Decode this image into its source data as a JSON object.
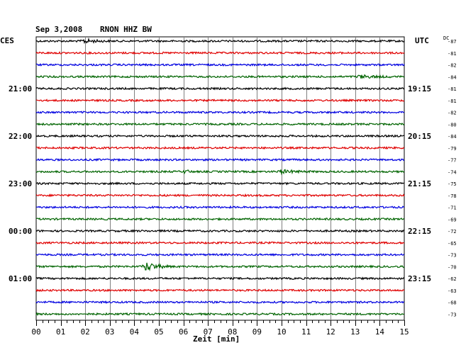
{
  "header": {
    "date": "Sep 3,2008",
    "station": "RNON HHZ BW",
    "left_zone": "CES",
    "right_zone": "UTC",
    "dc_label": "DC"
  },
  "chart_data": {
    "type": "line",
    "title": "Sep 3,2008   RNON HHZ BW",
    "xlabel": "Zeit [min]",
    "x_ticks": [
      "00",
      "01",
      "02",
      "03",
      "04",
      "05",
      "06",
      "07",
      "08",
      "09",
      "10",
      "11",
      "12",
      "13",
      "14",
      "15"
    ],
    "xlim": [
      0,
      15
    ],
    "grid": true,
    "trace_colors": [
      "#000000",
      "#e00000",
      "#0000e0",
      "#006400"
    ],
    "left_time_labels": [
      {
        "trace": 4,
        "label": "21:00"
      },
      {
        "trace": 8,
        "label": "22:00"
      },
      {
        "trace": 12,
        "label": "23:00"
      },
      {
        "trace": 16,
        "label": "00:00"
      },
      {
        "trace": 20,
        "label": "01:00"
      }
    ],
    "right_time_labels": [
      {
        "trace": 4,
        "label": "19:15"
      },
      {
        "trace": 8,
        "label": "20:15"
      },
      {
        "trace": 12,
        "label": "21:15"
      },
      {
        "trace": 16,
        "label": "22:15"
      },
      {
        "trace": 20,
        "label": "23:15"
      }
    ],
    "dc_offsets": [
      -87,
      -81,
      -82,
      -84,
      -81,
      -81,
      -82,
      -80,
      -84,
      -79,
      -77,
      -74,
      -75,
      -78,
      -71,
      -69,
      -72,
      -65,
      -73,
      -70,
      -62,
      -63,
      -68,
      -73
    ],
    "events": [
      {
        "trace": 0,
        "minute_start": 1.8,
        "minute_end": 3.0,
        "amplitude": 2.5
      },
      {
        "trace": 3,
        "minute_start": 13.0,
        "minute_end": 14.5,
        "amplitude": 2.0
      },
      {
        "trace": 11,
        "minute_start": 6.0,
        "minute_end": 6.4,
        "amplitude": 3.0
      },
      {
        "trace": 11,
        "minute_start": 9.8,
        "minute_end": 11.2,
        "amplitude": 2.2
      },
      {
        "trace": 19,
        "minute_start": 4.3,
        "minute_end": 5.5,
        "amplitude": 6.0
      }
    ]
  }
}
